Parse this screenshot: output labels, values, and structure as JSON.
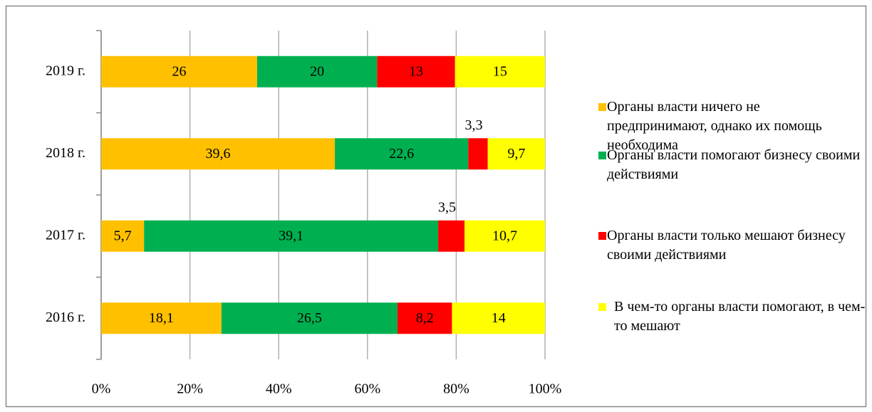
{
  "chart_data": {
    "type": "bar",
    "orientation": "horizontal",
    "stacking": "percent",
    "categories": [
      "2019 г.",
      "2018 г.",
      "2017 г.",
      "2016 г."
    ],
    "series": [
      {
        "name": "Органы власти ничего не предпринимают, однако их помощь необходима",
        "color": "#ffc000",
        "values": [
          26,
          39.6,
          5.7,
          18.1
        ],
        "value_labels": [
          "26",
          "39,6",
          "5,7",
          "18,1"
        ]
      },
      {
        "name": "Органы власти помогают бизнесу своими действиями",
        "color": "#00b050",
        "values": [
          20,
          22.6,
          39.1,
          26.5
        ],
        "value_labels": [
          "20",
          "22,6",
          "39,1",
          "26,5"
        ]
      },
      {
        "name": "Органы власти только мешают бизнесу своими действиями",
        "color": "#ff0000",
        "values": [
          13,
          3.3,
          3.5,
          8.2
        ],
        "value_labels": [
          "13",
          "3,3",
          "3,5",
          "8,2"
        ]
      },
      {
        "name": "В чем-то органы власти помогают, в чем-то мешают",
        "color": "#ffff00",
        "values": [
          15,
          9.7,
          10.7,
          14
        ],
        "value_labels": [
          "15",
          "9,7",
          "10,7",
          "14"
        ]
      }
    ],
    "xlim": [
      0,
      100
    ],
    "xticks": [
      {
        "value": 0,
        "label": "0%"
      },
      {
        "value": 20,
        "label": "20%"
      },
      {
        "value": 40,
        "label": "40%"
      },
      {
        "value": 60,
        "label": "60%"
      },
      {
        "value": 80,
        "label": "80%"
      },
      {
        "value": 100,
        "label": "100%"
      }
    ],
    "grid": true,
    "legend": "right"
  }
}
